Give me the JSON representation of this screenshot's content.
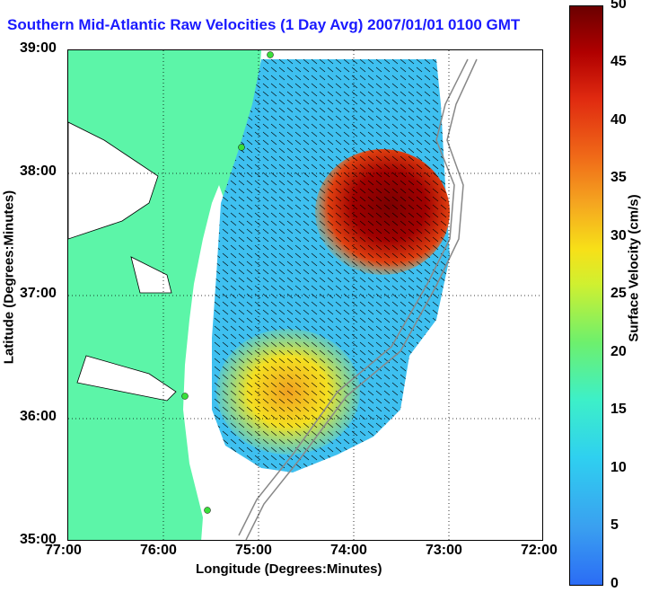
{
  "title": "Southern Mid-Atlantic Raw Velocities (1 Day Avg) 2007/01/01 0100 GMT",
  "xlabel": "Longitude (Degrees:Minutes)",
  "ylabel": "Latitude (Degrees:Minutes)",
  "colorbar_label": "Surface Velocity (cm/s)",
  "x_ticks": [
    "77:00",
    "76:00",
    "75:00",
    "74:00",
    "73:00",
    "72:00"
  ],
  "y_ticks": [
    "39:00",
    "38:00",
    "37:00",
    "36:00",
    "35:00"
  ],
  "colorbar_ticks": [
    "50",
    "45",
    "40",
    "35",
    "30",
    "25",
    "20",
    "15",
    "10",
    "5",
    "0"
  ],
  "colors": {
    "land": "#5cf5a8",
    "title": "#1a1aff"
  }
}
